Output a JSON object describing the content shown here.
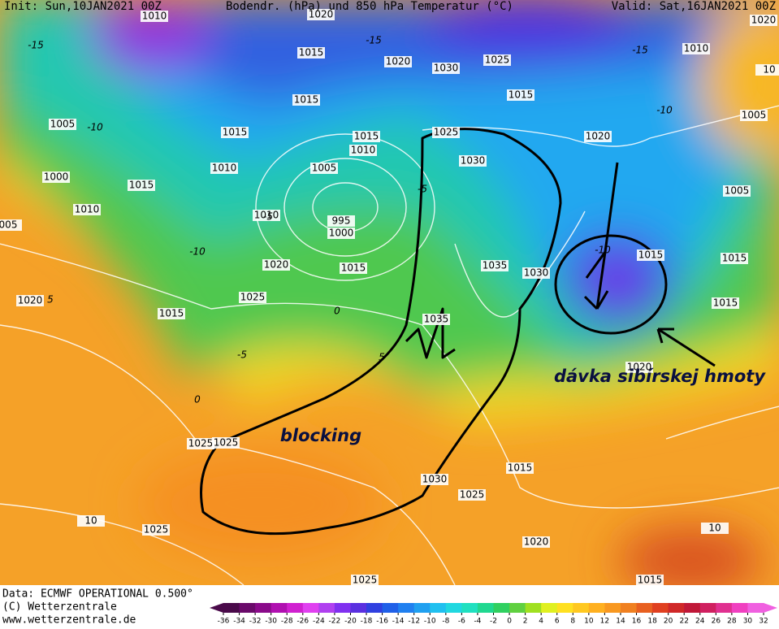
{
  "header": {
    "init": "Init: Sun,10JAN2021 00Z",
    "title": "Bodendr. (hPa) und 850 hPa Temperatur (°C)",
    "valid": "Valid: Sat,16JAN2021 00Z"
  },
  "isobar_labels": [
    "1010",
    "1020",
    "1015",
    "1020",
    "1030",
    "1025",
    "1015",
    "1010",
    "1020",
    "10",
    "1005",
    "1005",
    "1015",
    "1015",
    "1015",
    "1010",
    "1005",
    "1010",
    "1025",
    "1030",
    "1020",
    "1000",
    "1015",
    "1010",
    "1010",
    "995",
    "1000",
    "005",
    "1005",
    "1020",
    "1015",
    "1035",
    "1030",
    "1015",
    "1015",
    "1020",
    "1025",
    "1015",
    "1035",
    "1015",
    "1020",
    "1025",
    "1015",
    "1030",
    "1025",
    "1025",
    "1020",
    "1025",
    "1015",
    "10",
    "10",
    "1025"
  ],
  "temperature_labels": [
    "-15",
    "-10",
    "-15",
    "-15",
    "-10",
    "-10",
    "-5",
    "-10",
    "0",
    "-5",
    "0",
    "5",
    "-5",
    "5"
  ],
  "annotations": {
    "blocking": "blocking",
    "siberian": "dávka sibírskej hmoty"
  },
  "footer": {
    "data": "Data: ECMWF OPERATIONAL 0.500°",
    "copyright": "(C) Wetterzentrale",
    "url": "www.wetterzentrale.de"
  },
  "colorbar": {
    "ticks": [
      -36,
      -34,
      -32,
      -30,
      -28,
      -26,
      -24,
      -22,
      -20,
      -18,
      -16,
      -14,
      -12,
      -10,
      -8,
      -6,
      -4,
      -2,
      0,
      2,
      4,
      6,
      8,
      10,
      12,
      14,
      16,
      18,
      20,
      22,
      24,
      26,
      28,
      30,
      32
    ],
    "colors": [
      "#4a0a4a",
      "#6a0a6a",
      "#8a0a8a",
      "#b010b0",
      "#d020d0",
      "#e040f0",
      "#b040f0",
      "#8030f0",
      "#5a30e0",
      "#3040e0",
      "#2060e8",
      "#2080f0",
      "#20a0f0",
      "#20c0f0",
      "#20d8e0",
      "#20e0c0",
      "#20d890",
      "#30d060",
      "#60d040",
      "#a0e020",
      "#e0f020",
      "#ffe020",
      "#ffc820",
      "#ffb020",
      "#f89820",
      "#f08020",
      "#e86020",
      "#e04020",
      "#d02828",
      "#c01838",
      "#d02060",
      "#e03090",
      "#f040c0",
      "#f060e0"
    ]
  }
}
